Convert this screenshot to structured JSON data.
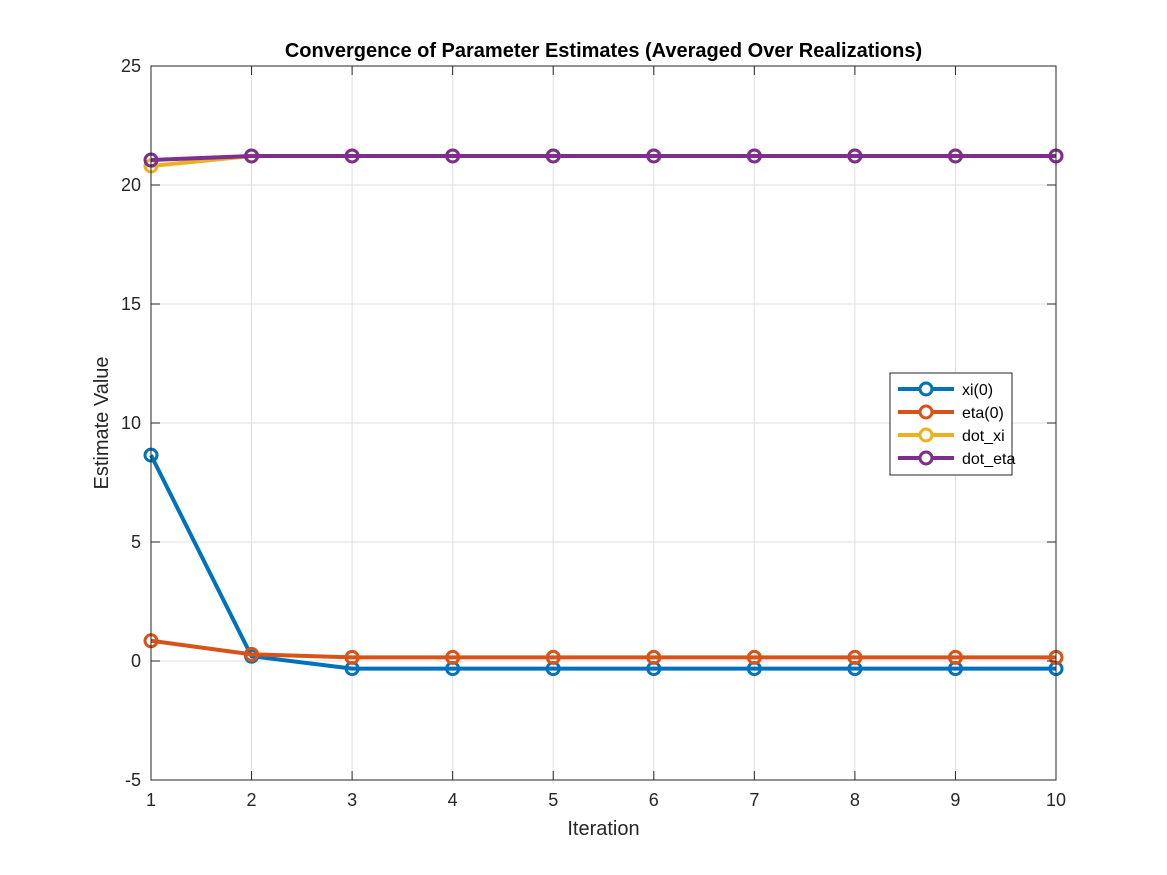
{
  "chart_data": {
    "type": "line",
    "title": "Convergence of Parameter Estimates (Averaged Over Realizations)",
    "xlabel": "Iteration",
    "ylabel": "Estimate Value",
    "xlim": [
      1,
      10
    ],
    "ylim": [
      -5,
      25
    ],
    "xticks": [
      "1",
      "2",
      "3",
      "4",
      "5",
      "6",
      "7",
      "8",
      "9",
      "10"
    ],
    "yticks": [
      "-5",
      "0",
      "5",
      "10",
      "15",
      "20",
      "25"
    ],
    "grid": true,
    "legend_position": "right",
    "x": [
      1,
      2,
      3,
      4,
      5,
      6,
      7,
      8,
      9,
      10
    ],
    "series": [
      {
        "name": "xi(0)",
        "color": "#0072BD",
        "values": [
          8.65,
          0.2,
          -0.32,
          -0.32,
          -0.32,
          -0.32,
          -0.32,
          -0.32,
          -0.32,
          -0.32
        ]
      },
      {
        "name": "eta(0)",
        "color": "#D95319",
        "values": [
          0.85,
          0.28,
          0.15,
          0.15,
          0.15,
          0.15,
          0.15,
          0.15,
          0.15,
          0.15
        ]
      },
      {
        "name": "dot_xi",
        "color": "#EDB120",
        "values": [
          20.8,
          21.22,
          21.22,
          21.22,
          21.22,
          21.22,
          21.22,
          21.22,
          21.22,
          21.22
        ]
      },
      {
        "name": "dot_eta",
        "color": "#7E2F8E",
        "values": [
          21.05,
          21.22,
          21.22,
          21.22,
          21.22,
          21.22,
          21.22,
          21.22,
          21.22,
          21.22
        ]
      }
    ]
  }
}
